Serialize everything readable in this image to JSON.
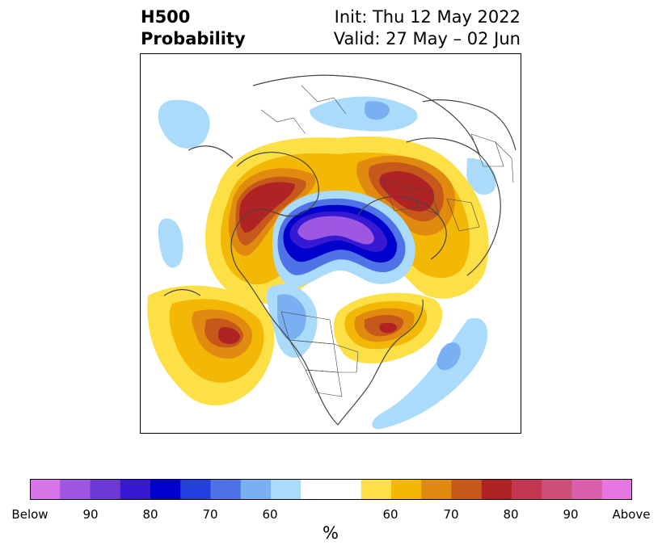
{
  "title": {
    "left_line1": "H500",
    "left_line2": "Probability",
    "right_line1": "Init: Thu 12 May 2022",
    "right_line2": "Valid: 27 May – 02 Jun"
  },
  "colorbar": {
    "unit": "%",
    "colors": [
      "#d575e8",
      "#9d57e0",
      "#6b38d7",
      "#3819d3",
      "#0000cc",
      "#2241de",
      "#4f73e6",
      "#78b0f2",
      "#abdbfb",
      "#ffffff",
      "#ffffff",
      "#fde046",
      "#f3b706",
      "#e08a0f",
      "#c5581a",
      "#b02324",
      "#c0374f",
      "#cc4f7a",
      "#d95fab",
      "#e676e0"
    ],
    "tick_labels": [
      "Below",
      "90",
      "80",
      "70",
      "60",
      "60",
      "70",
      "80",
      "90",
      "Above"
    ]
  },
  "map": {
    "projection": "north-polar-stereographic",
    "border_color": "#444444",
    "anomaly_centers": [
      {
        "region": "Northern Siberia / Arctic Ocean",
        "category": "below",
        "level": 90,
        "color": "#9d57e0"
      },
      {
        "region": "Eastern Europe / Western Russia",
        "category": "above",
        "level": 80,
        "color": "#b02324"
      },
      {
        "region": "Eastern Siberia / Alaska",
        "category": "above",
        "level": 80,
        "color": "#b02324"
      },
      {
        "region": "North Pacific",
        "category": "above",
        "level": 80,
        "color": "#b02324"
      },
      {
        "region": "Eastern Canada / Greenland",
        "category": "above",
        "level": 80,
        "color": "#b02324"
      },
      {
        "region": "North Atlantic",
        "category": "below",
        "level": 70,
        "color": "#78b0f2"
      },
      {
        "region": "Central Asia",
        "category": "below",
        "level": 60,
        "color": "#78b0f2"
      }
    ]
  }
}
